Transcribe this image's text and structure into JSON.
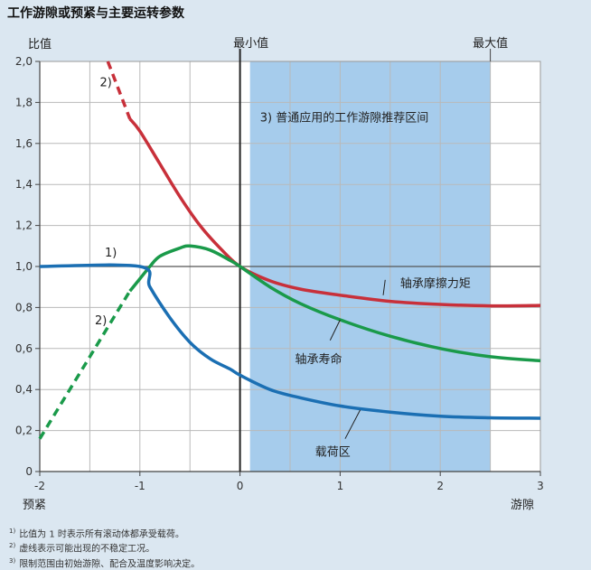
{
  "figure": {
    "title": "工作游隙或预紧与主要运转参数",
    "footnotes": [
      {
        "mark": "1)",
        "text": "比值为 1 时表示所有滚动体都承受载荷。"
      },
      {
        "mark": "2)",
        "text": "虚线表示可能出现的不稳定工况。"
      },
      {
        "mark": "3)",
        "text": "限制范围由初始游隙、配合及温度影响决定。"
      }
    ]
  },
  "chart_data": {
    "type": "line",
    "ylabel": "比值",
    "xlabel_left": "预紧",
    "xlabel_right": "游隙",
    "top_labels": {
      "min": "最小值",
      "max": "最大值"
    },
    "xlim": [
      -2,
      3
    ],
    "ylim": [
      0,
      2.0
    ],
    "xticks": [
      "-2",
      "-1",
      "0",
      "1",
      "2",
      "3"
    ],
    "yticks": [
      "0",
      "0,2",
      "0,4",
      "0,6",
      "0,8",
      "1,0",
      "1,2",
      "1,4",
      "1,6",
      "1,8",
      "2,0"
    ],
    "grid": true,
    "shaded_region": {
      "x": [
        0.1,
        2.5
      ],
      "label": "3)  普通应用的工作游隙推荐区间",
      "color": "#a6ccec"
    },
    "series": [
      {
        "name": "轴承摩擦力矩",
        "color": "#c8303a",
        "dashed_note": "2)",
        "points": [
          [
            -1.32,
            2.0
          ],
          [
            -1.1,
            1.72
          ],
          [
            -1.0,
            1.66
          ],
          [
            -0.8,
            1.5
          ],
          [
            -0.6,
            1.34
          ],
          [
            -0.4,
            1.2
          ],
          [
            -0.2,
            1.09
          ],
          [
            0.0,
            1.0
          ],
          [
            0.3,
            0.93
          ],
          [
            0.6,
            0.89
          ],
          [
            1.0,
            0.86
          ],
          [
            1.5,
            0.83
          ],
          [
            2.0,
            0.815
          ],
          [
            2.5,
            0.808
          ],
          [
            3.0,
            0.81
          ]
        ],
        "dashed_until": -1.1
      },
      {
        "name": "轴承寿命",
        "color": "#1a9a4a",
        "dashed_note": "2)",
        "points": [
          [
            -2.0,
            0.16
          ],
          [
            -1.5,
            0.56
          ],
          [
            -1.1,
            0.88
          ],
          [
            -1.0,
            0.94
          ],
          [
            -0.9,
            1.0
          ],
          [
            -0.8,
            1.05
          ],
          [
            -0.6,
            1.09
          ],
          [
            -0.5,
            1.1
          ],
          [
            -0.3,
            1.08
          ],
          [
            -0.1,
            1.03
          ],
          [
            0.0,
            1.0
          ],
          [
            0.3,
            0.9
          ],
          [
            0.6,
            0.82
          ],
          [
            1.0,
            0.74
          ],
          [
            1.5,
            0.66
          ],
          [
            2.0,
            0.6
          ],
          [
            2.5,
            0.56
          ],
          [
            3.0,
            0.54
          ]
        ],
        "dashed_until": -1.1
      },
      {
        "name": "载荷区",
        "color": "#1b6fb3",
        "dashed_note": "1)",
        "points": [
          [
            -2.0,
            1.0
          ],
          [
            -1.0,
            1.0
          ],
          [
            -0.9,
            0.9
          ],
          [
            -0.7,
            0.75
          ],
          [
            -0.5,
            0.63
          ],
          [
            -0.3,
            0.55
          ],
          [
            -0.1,
            0.5
          ],
          [
            0.0,
            0.47
          ],
          [
            0.3,
            0.4
          ],
          [
            0.6,
            0.36
          ],
          [
            1.0,
            0.32
          ],
          [
            1.5,
            0.29
          ],
          [
            2.0,
            0.27
          ],
          [
            2.5,
            0.262
          ],
          [
            3.0,
            0.26
          ]
        ]
      }
    ],
    "annotations": [
      {
        "text": "1)",
        "x": -1.35,
        "y": 1.07
      },
      {
        "text": "2)",
        "x": -1.4,
        "y": 1.9
      },
      {
        "text": "2)",
        "x": -1.45,
        "y": 0.74
      }
    ]
  }
}
